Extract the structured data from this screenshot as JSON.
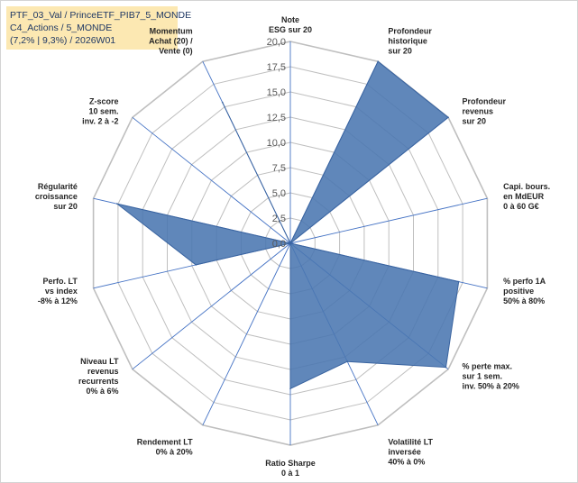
{
  "title_box": {
    "line1": "PTF_03_Val / PrinceETF_PIB7_5_MONDE",
    "line2": "C4_Actions / 5_MONDE",
    "line3": "(7,2% | 9,3%) / 2026W01"
  },
  "chart_data": {
    "type": "radar",
    "rmax": 20,
    "ticks": [
      "0,0",
      "2,5",
      "5,0",
      "7,5",
      "10,0",
      "12,5",
      "15,0",
      "17,5",
      "20,0"
    ],
    "axes": [
      [
        "Note",
        "ESG sur 20"
      ],
      [
        "Profondeur",
        "historique",
        "sur 20"
      ],
      [
        "Profondeur",
        "revenus",
        "sur 20"
      ],
      [
        "Capi. bours.",
        "en MdEUR",
        "0 à 60 G€"
      ],
      [
        "% perfo 1A",
        "positive",
        "50% à 80%"
      ],
      [
        "% perte max.",
        "sur 1 sem.",
        "inv. 50% à 20%"
      ],
      [
        "Volatilité LT",
        "inversée",
        "40% à 0%"
      ],
      [
        "Ratio Sharpe",
        "0 à 1"
      ],
      [
        "Rendement LT",
        "0% à 20%"
      ],
      [
        "Niveau LT",
        "revenus",
        "recurrents",
        "0% à 6%"
      ],
      [
        "Perfo. LT",
        "vs index",
        "-8% à 12%"
      ],
      [
        "Régularité",
        "croissance",
        "sur 20"
      ],
      [
        "Z-score",
        "10 sem.",
        "inv. 2 à -2"
      ],
      [
        "Momentum",
        "Achat (20) /",
        "Vente (0)"
      ]
    ],
    "values": [
      0,
      20,
      20,
      0,
      17.1,
      19.7,
      13,
      14.4,
      0,
      0,
      9.6,
      17.6,
      0,
      15.5
    ],
    "grid": "on",
    "legend": "none",
    "colors": {
      "fill": "#4a76b0",
      "stroke": "#3a64a0",
      "grid": "#bfbfbf",
      "axis": "#4472c4"
    }
  }
}
